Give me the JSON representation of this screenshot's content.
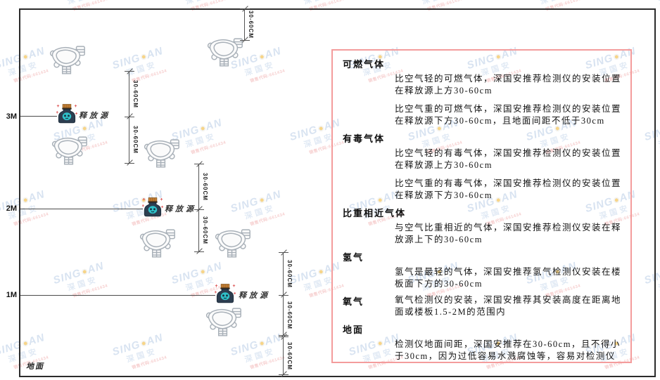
{
  "watermark": {
    "brand_prefix": "SING",
    "brand_suffix": "AN",
    "brand_cn": "深国安",
    "code": "销售代码:661434"
  },
  "diagram": {
    "ground_label": "地面",
    "source_label": "释放源",
    "dim_label": "30-60CM",
    "height_labels": [
      "3M",
      "2M",
      "1M"
    ]
  },
  "panel": {
    "sections": [
      {
        "heading": "可燃气体",
        "paragraphs": [
          "比空气轻的可燃气体，深国安推荐检测仪的安装位置在释放源上方30-60cm",
          "比空气重的可燃气体，深国安推荐检测仪的安装位置在释放源下方30-60cm，且地面间距不低于30cm"
        ]
      },
      {
        "heading": "有毒气体",
        "paragraphs": [
          "比空气轻的有毒气体，深国安推荐检测仪的安装位置在释放源上方30-60cm",
          "比空气重的有毒气体，深国安推荐检测仪的安装位置在释放源下方30-60cm"
        ]
      },
      {
        "heading": "比重相近气体",
        "paragraphs": [
          "与空气比重相近的气体，深国安推荐检测仪安装在释放源上下的30-60cm"
        ]
      },
      {
        "heading": "氢气",
        "paragraphs": [
          "氢气是最轻的气体，深国安推荐氢气检测仪安装在楼板面下方的30-60cm"
        ]
      },
      {
        "heading": "氧气",
        "paragraphs": [
          "氧气检测仪的安装，深国安推荐其安装高度在距离地面或楼板1.5-2M的范围内"
        ]
      },
      {
        "heading": "地面",
        "paragraphs": [
          "检测仪地面间距，深国安推荐在30-60cm，且不得小于30cm，因为过低容易水溅腐蚀等，容易对检测仪造成伤害"
        ]
      }
    ]
  },
  "colors": {
    "panel_border": "#f49c9c",
    "frame": "#2b2b2b",
    "watermark_blue": "#b9cde6",
    "watermark_dot": "#f2b32a",
    "watermark_red": "#f0a8a8",
    "source_body": "#2d3e50",
    "source_cap": "#c98136",
    "source_face": "#2fc1c9"
  }
}
